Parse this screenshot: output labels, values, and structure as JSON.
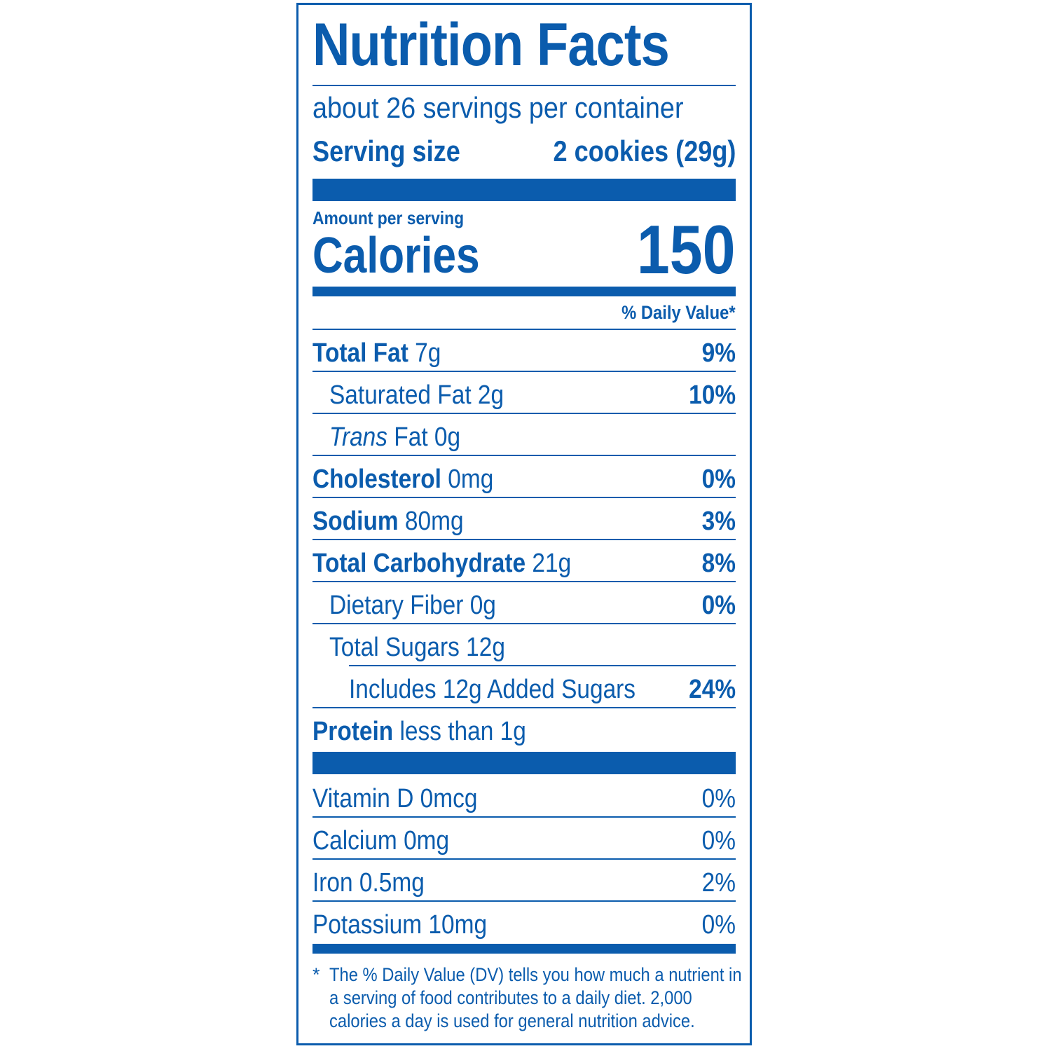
{
  "label": {
    "title": "Nutrition Facts",
    "servings_per_container": "about 26 servings per container",
    "serving_size_label": "Serving size",
    "serving_size_value": "2 cookies (29g)",
    "amount_per_serving": "Amount per serving",
    "calories_label": "Calories",
    "calories_value": "150",
    "daily_value_header": "% Daily Value*",
    "nutrients": [
      {
        "name": "Total Fat",
        "amount": "7g",
        "dv": "9%"
      },
      {
        "name": "Saturated Fat",
        "amount": "2g",
        "dv": "10%"
      },
      {
        "name_italic": "Trans",
        "name": "Fat",
        "amount": "0g",
        "dv": ""
      },
      {
        "name": "Cholesterol",
        "amount": "0mg",
        "dv": "0%"
      },
      {
        "name": "Sodium",
        "amount": "80mg",
        "dv": "3%"
      },
      {
        "name": "Total Carbohydrate",
        "amount": "21g",
        "dv": "8%"
      },
      {
        "name": "Dietary Fiber",
        "amount": "0g",
        "dv": "0%"
      },
      {
        "name": "Total Sugars",
        "amount": "12g",
        "dv": ""
      },
      {
        "name": "Includes 12g Added Sugars",
        "amount": "",
        "dv": "24%"
      },
      {
        "name": "Protein",
        "amount": "less than 1g",
        "dv": ""
      }
    ],
    "vitamins": [
      {
        "name": "Vitamin D",
        "amount": "0mcg",
        "dv": "0%"
      },
      {
        "name": "Calcium",
        "amount": "0mg",
        "dv": "0%"
      },
      {
        "name": "Iron",
        "amount": "0.5mg",
        "dv": "2%"
      },
      {
        "name": "Potassium",
        "amount": "10mg",
        "dv": "0%"
      }
    ],
    "footnote_star": "*",
    "footnote_text": "The % Daily Value (DV) tells you how much a nutrient in a serving of food contributes to a daily diet. 2,000 calories a day is used for general nutrition advice."
  },
  "colors": {
    "ink": "#0b5cad",
    "background": "#ffffff"
  }
}
